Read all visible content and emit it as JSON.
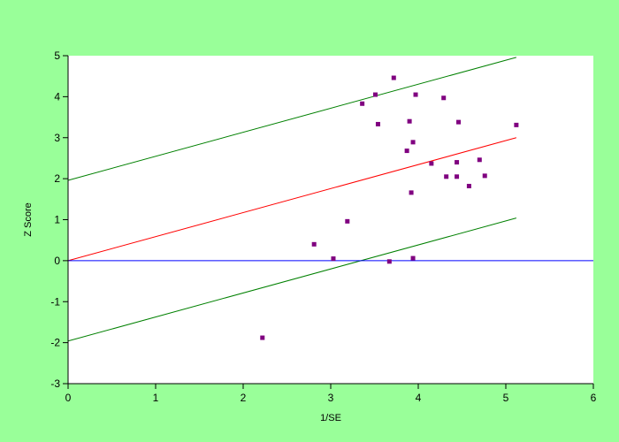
{
  "chart_data": {
    "type": "scatter",
    "title": "",
    "xlabel": "1/SE",
    "ylabel": "Z Score",
    "xlim": [
      0,
      6
    ],
    "ylim": [
      -3,
      5
    ],
    "xticks": [
      "0",
      "1",
      "2",
      "3",
      "4",
      "5",
      "6"
    ],
    "yticks": [
      "-3",
      "-2",
      "-1",
      "0",
      "1",
      "2",
      "3",
      "4",
      "5"
    ],
    "grid": false,
    "colors": {
      "figure_background": "#99ff99",
      "plot_background": "#ffffff",
      "points": "#800080",
      "regression_line": "#ff0000",
      "confidence_bounds": "#008000",
      "zero_line": "#0000ff"
    },
    "points": [
      {
        "x": 2.22,
        "y": -1.88
      },
      {
        "x": 2.81,
        "y": 0.4
      },
      {
        "x": 3.03,
        "y": 0.05
      },
      {
        "x": 3.19,
        "y": 0.96
      },
      {
        "x": 3.36,
        "y": 3.83
      },
      {
        "x": 3.51,
        "y": 4.05
      },
      {
        "x": 3.54,
        "y": 3.33
      },
      {
        "x": 3.67,
        "y": -0.02
      },
      {
        "x": 3.72,
        "y": 4.46
      },
      {
        "x": 3.87,
        "y": 2.68
      },
      {
        "x": 3.9,
        "y": 3.4
      },
      {
        "x": 3.92,
        "y": 1.66
      },
      {
        "x": 3.94,
        "y": 0.06
      },
      {
        "x": 3.94,
        "y": 2.89
      },
      {
        "x": 3.97,
        "y": 4.05
      },
      {
        "x": 4.15,
        "y": 2.37
      },
      {
        "x": 4.29,
        "y": 3.97
      },
      {
        "x": 4.32,
        "y": 2.05
      },
      {
        "x": 4.44,
        "y": 2.4
      },
      {
        "x": 4.44,
        "y": 2.05
      },
      {
        "x": 4.46,
        "y": 3.38
      },
      {
        "x": 4.58,
        "y": 1.82
      },
      {
        "x": 4.7,
        "y": 2.46
      },
      {
        "x": 4.76,
        "y": 2.07
      },
      {
        "x": 5.12,
        "y": 3.31
      }
    ],
    "lines": [
      {
        "role": "regression",
        "color": "#ff0000",
        "x": [
          0,
          5.12
        ],
        "y": [
          0,
          3.0
        ]
      },
      {
        "role": "upper-bound",
        "color": "#008000",
        "x": [
          0,
          5.12
        ],
        "y": [
          1.96,
          4.96
        ]
      },
      {
        "role": "lower-bound",
        "color": "#008000",
        "x": [
          0,
          5.12
        ],
        "y": [
          -1.96,
          1.04
        ]
      },
      {
        "role": "zero-line",
        "color": "#0000ff",
        "x": [
          0,
          6
        ],
        "y": [
          0,
          0
        ]
      }
    ]
  }
}
